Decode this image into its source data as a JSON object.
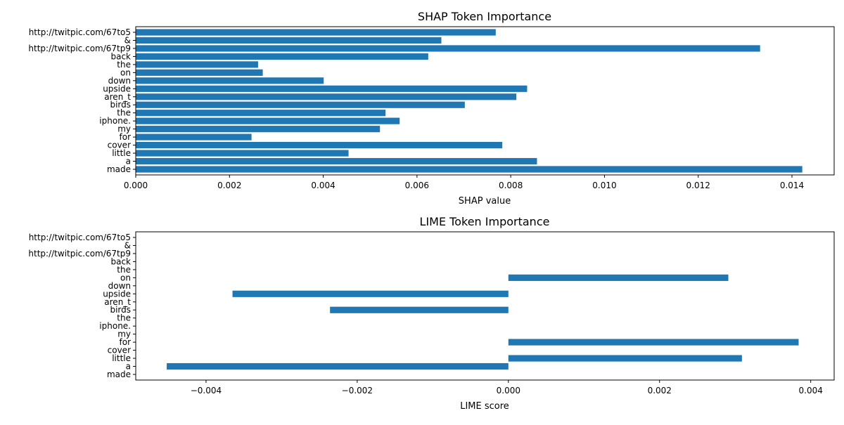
{
  "chart_data": [
    {
      "type": "bar",
      "orientation": "horizontal",
      "title": "SHAP Token Importance",
      "xlabel": "SHAP value",
      "ylabel": "",
      "xlim": [
        0.0,
        0.0149
      ],
      "xticks": [
        0.0,
        0.002,
        0.004,
        0.006,
        0.008,
        0.01,
        0.012,
        0.014
      ],
      "xtick_labels": [
        "0.000",
        "0.002",
        "0.004",
        "0.006",
        "0.008",
        "0.010",
        "0.012",
        "0.014"
      ],
      "grid": false,
      "bar_color": "#1f77b4",
      "categories": [
        "http://twitpic.com/67to5",
        "&",
        "http://twitpic.com/67tp9",
        "back",
        "the",
        "on",
        "down",
        "upside",
        "aren_t",
        "birds",
        "the",
        "iphone.",
        "my",
        "for",
        "cover",
        "little",
        "a",
        "made"
      ],
      "values": [
        0.00768,
        0.00652,
        0.01332,
        0.00624,
        0.00261,
        0.00271,
        0.00401,
        0.00835,
        0.00812,
        0.00702,
        0.00533,
        0.00563,
        0.00521,
        0.00247,
        0.00782,
        0.00454,
        0.00856,
        0.01422
      ]
    },
    {
      "type": "bar",
      "orientation": "horizontal",
      "title": "LIME Token Importance",
      "xlabel": "LIME score",
      "ylabel": "",
      "xlim": [
        -0.00493,
        0.00431
      ],
      "xticks": [
        -0.004,
        -0.002,
        0.0,
        0.002,
        0.004
      ],
      "xtick_labels": [
        "−0.004",
        "−0.002",
        "0.000",
        "0.002",
        "0.004"
      ],
      "grid": false,
      "bar_color": "#1f77b4",
      "categories": [
        "http://twitpic.com/67to5",
        "&",
        "http://twitpic.com/67tp9",
        "back",
        "the",
        "on",
        "down",
        "upside",
        "aren_t",
        "birds",
        "the",
        "iphone.",
        "my",
        "for",
        "cover",
        "little",
        "a",
        "made"
      ],
      "values": [
        0,
        0,
        0,
        0,
        0,
        0.00291,
        0,
        -0.00365,
        0,
        -0.00236,
        0,
        0,
        0,
        0.00384,
        0,
        0.00309,
        -0.00452,
        0
      ]
    }
  ]
}
